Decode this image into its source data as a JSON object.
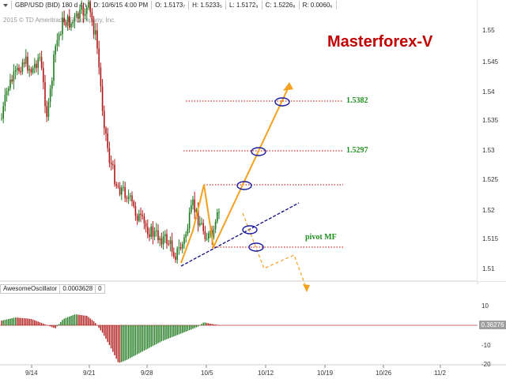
{
  "header": {
    "symbol": "GBP/USD (BID) 180 d 4h",
    "date": "D: 10/6/15 4:00 PM",
    "open": "O: 1.5173₇",
    "high": "H: 1.5233₅",
    "low": "L: 1.5172₉",
    "close": "C: 1.5226₈",
    "range": "R: 0.0060₆"
  },
  "copyright": "2015 © TD Ameritrade IP Company, Inc.",
  "brand": "Masterforex-V",
  "levels": {
    "top": "1.5382",
    "mid": "1.5297",
    "pivot": "pivot MF"
  },
  "price_axis": [
    "1.55",
    "1.545",
    "1.54",
    "1.535",
    "1.53",
    "1.525",
    "1.52",
    "1.515",
    "1.51"
  ],
  "oscillator": {
    "name": "AwesomeOscillator",
    "value": "0.0003628",
    "zero": "0",
    "badge": "0.36276",
    "ticks": [
      "10",
      "0",
      "-10",
      "-20"
    ]
  },
  "x_axis": [
    "9/14",
    "9/21",
    "9/28",
    "10/5",
    "10/12",
    "10/19",
    "10/26",
    "11/2"
  ],
  "colors": {
    "bull": "#1f7a1f",
    "bear": "#b01818",
    "level_line": "#c00000",
    "path": "#f4a020",
    "trend": "#0a0a80",
    "brand": "#c00000"
  }
}
